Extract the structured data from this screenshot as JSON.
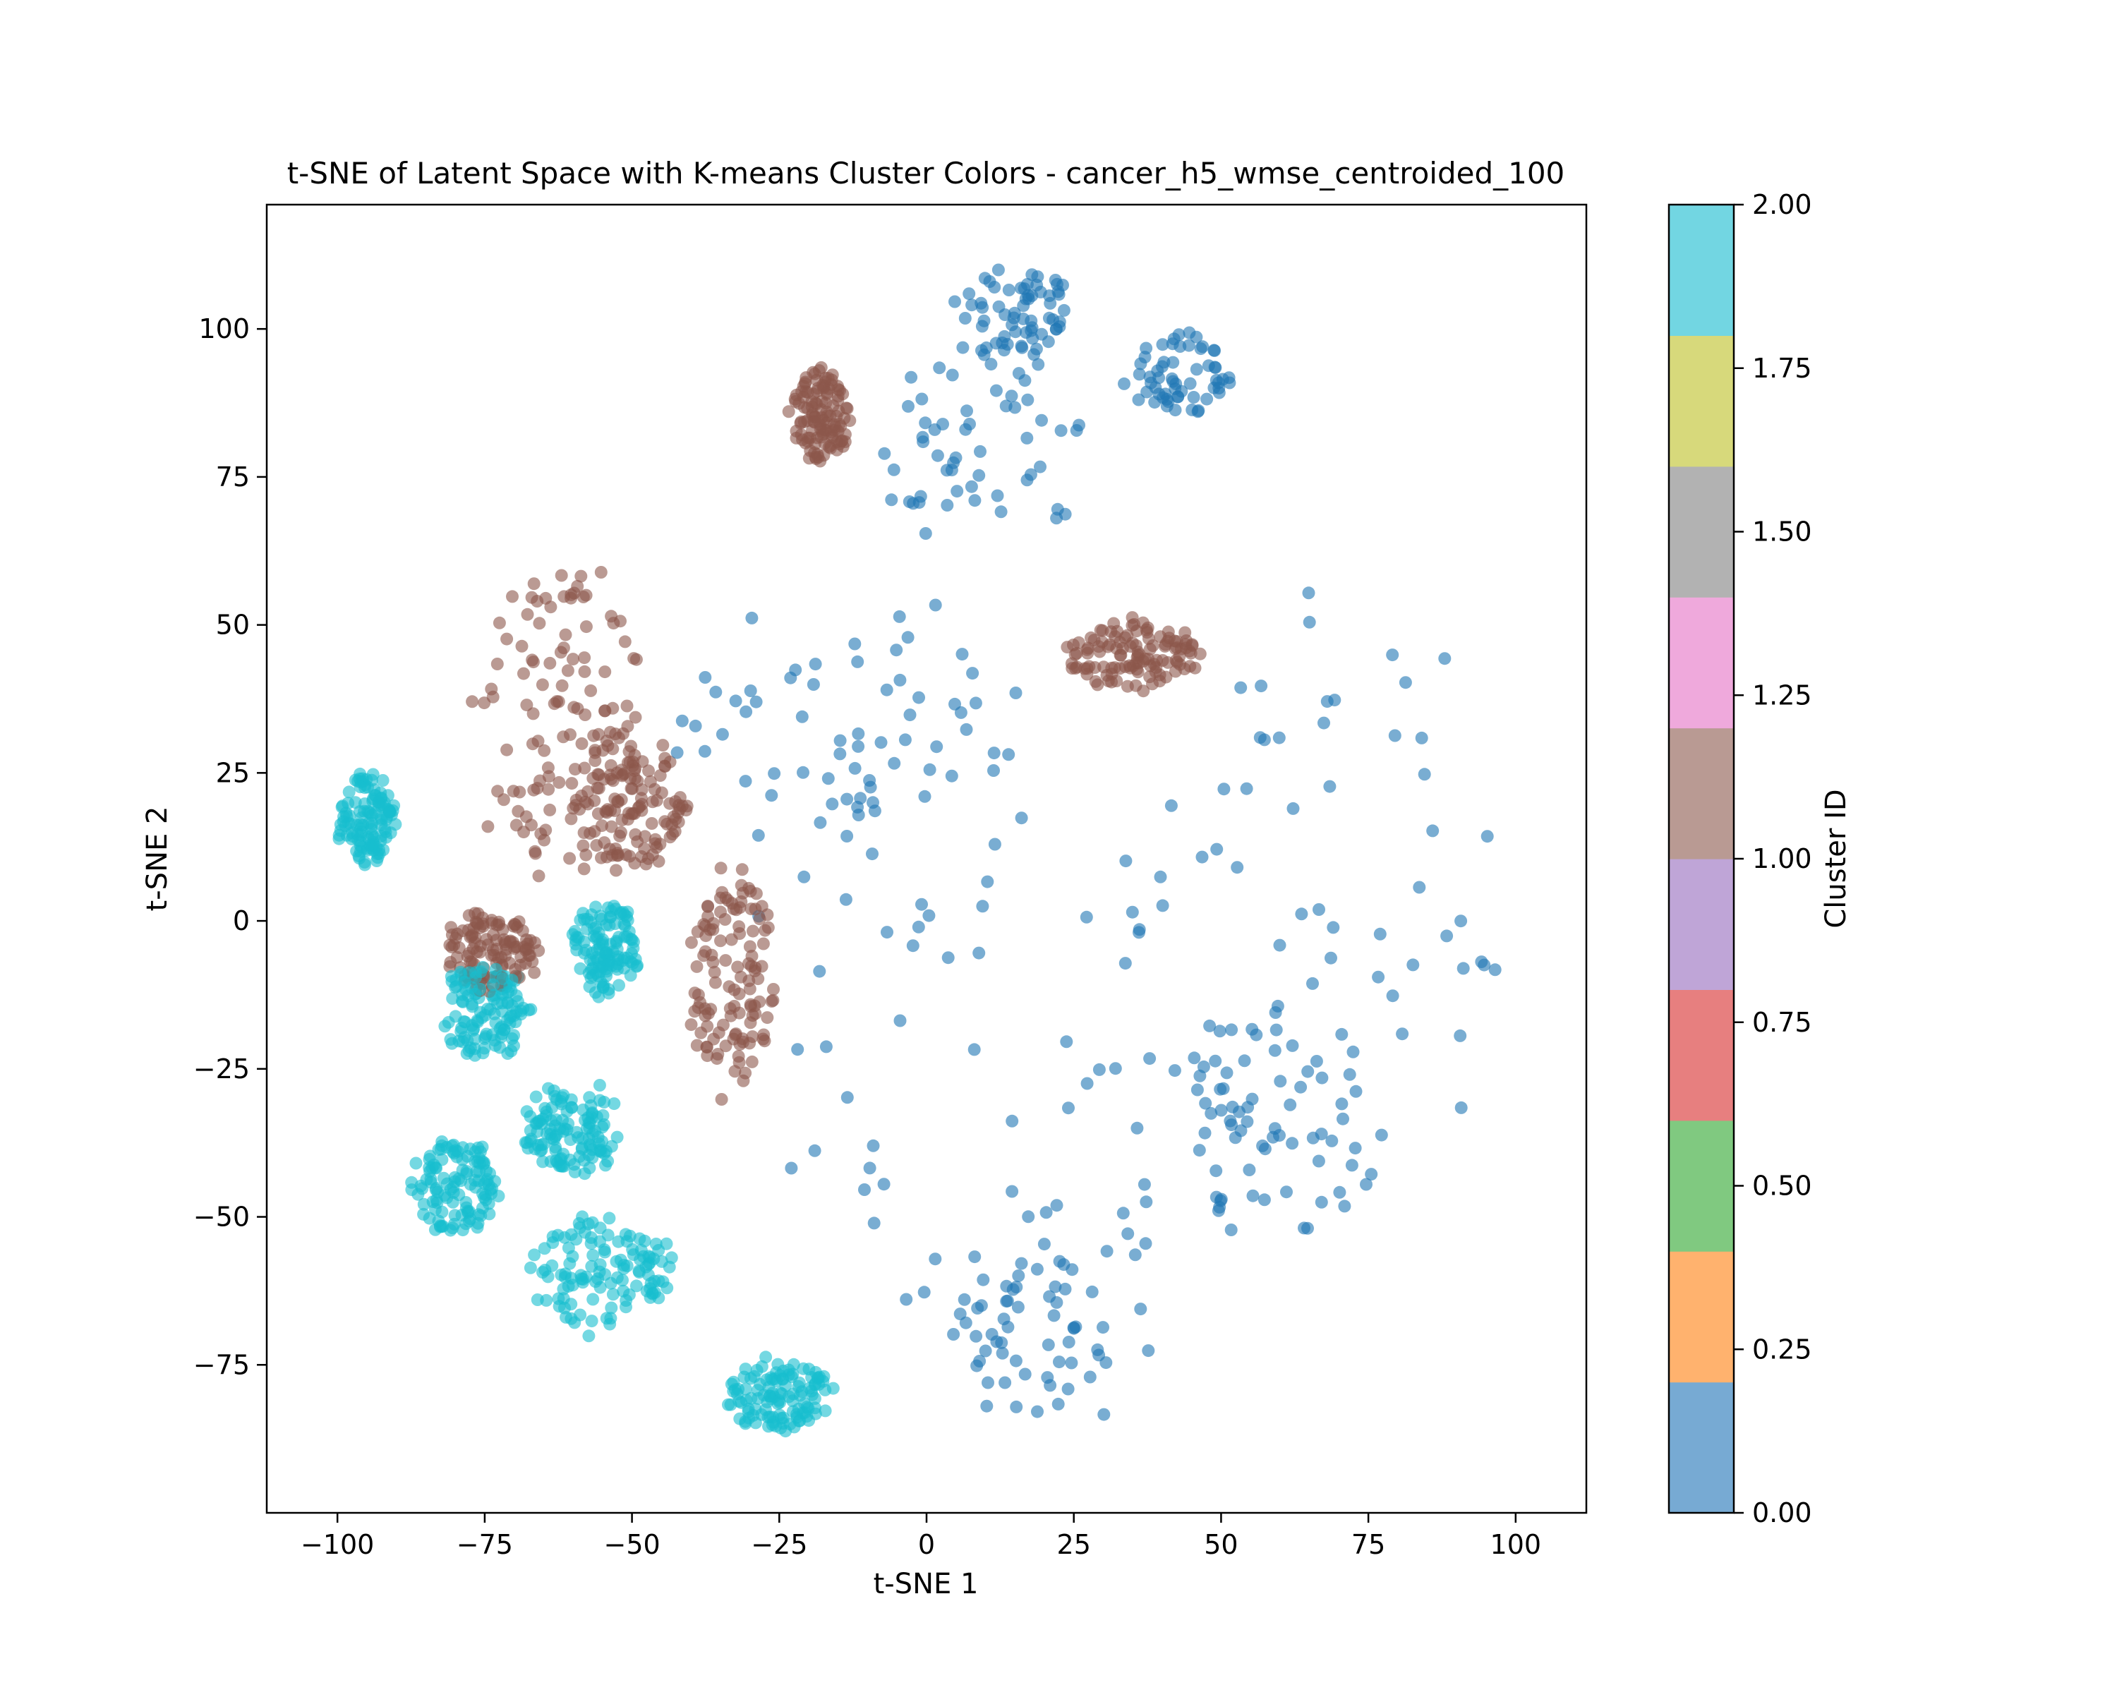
{
  "chart_data": {
    "type": "scatter",
    "title": "t-SNE of Latent Space with K-means Cluster Colors - cancer_h5_wmse_centroided_100",
    "xlabel": "t-SNE 1",
    "ylabel": "t-SNE 2",
    "xlim": [
      -112,
      112
    ],
    "ylim": [
      -100,
      121
    ],
    "xticks": [
      -100,
      -75,
      -50,
      -25,
      0,
      25,
      50,
      75,
      100
    ],
    "xtick_labels": [
      "−100",
      "−75",
      "−50",
      "−25",
      "0",
      "25",
      "50",
      "75",
      "100"
    ],
    "yticks": [
      -75,
      -50,
      -25,
      0,
      25,
      50,
      75,
      100
    ],
    "ytick_labels": [
      "−75",
      "−50",
      "−25",
      "0",
      "25",
      "50",
      "75",
      "100"
    ],
    "grid": false,
    "series": [
      {
        "cluster_id": 0,
        "color": "#1f77b4",
        "regions": [
          {
            "center": [
              10,
              -20
            ],
            "radius": [
              42,
              48
            ]
          },
          {
            "center": [
              70,
              5
            ],
            "radius": [
              28,
              50
            ]
          },
          {
            "center": [
              60,
              -35
            ],
            "radius": [
              18,
              20
            ]
          },
          {
            "center": [
              -15,
              35
            ],
            "radius": [
              30,
              22
            ]
          },
          {
            "center": [
              10,
              80
            ],
            "radius": [
              18,
              18
            ]
          },
          {
            "center": [
              15,
              103
            ],
            "radius": [
              10,
              8
            ]
          },
          {
            "center": [
              43,
              92
            ],
            "radius": [
              9,
              7
            ]
          },
          {
            "center": [
              20,
              -70
            ],
            "radius": [
              18,
              15
            ]
          }
        ]
      },
      {
        "cluster_id": 1,
        "color": "#8c564b",
        "regions": [
          {
            "center": [
              -62,
              35
            ],
            "radius": [
              15,
              28
            ]
          },
          {
            "center": [
              -50,
              20
            ],
            "radius": [
              10,
              12
            ]
          },
          {
            "center": [
              -74,
              -5
            ],
            "radius": [
              8,
              7
            ]
          },
          {
            "center": [
              -18,
              85
            ],
            "radius": [
              5,
              8
            ]
          },
          {
            "center": [
              35,
              45
            ],
            "radius": [
              12,
              6
            ]
          },
          {
            "center": [
              -33,
              -10
            ],
            "radius": [
              7,
              20
            ]
          }
        ]
      },
      {
        "cluster_id": 2,
        "color": "#17becf",
        "regions": [
          {
            "center": [
              -95,
              17
            ],
            "radius": [
              5,
              8
            ]
          },
          {
            "center": [
              -80,
              -45
            ],
            "radius": [
              8,
              8
            ]
          },
          {
            "center": [
              -75,
              -15
            ],
            "radius": [
              8,
              8
            ]
          },
          {
            "center": [
              -55,
              -60
            ],
            "radius": [
              12,
              10
            ]
          },
          {
            "center": [
              -60,
              -35
            ],
            "radius": [
              8,
              8
            ]
          },
          {
            "center": [
              -25,
              -80
            ],
            "radius": [
              9,
              6
            ]
          },
          {
            "center": [
              -55,
              -5
            ],
            "radius": [
              6,
              8
            ]
          }
        ]
      }
    ],
    "colorbar": {
      "label": "Cluster ID",
      "range": [
        0,
        2
      ],
      "tick_labels": [
        "0.00",
        "0.25",
        "0.50",
        "0.75",
        "1.00",
        "1.25",
        "1.50",
        "1.75",
        "2.00"
      ],
      "colors": [
        "#77aad3",
        "#ffb26e",
        "#80c980",
        "#e77f7f",
        "#bfa5d7",
        "#b99a93",
        "#efa9dc",
        "#b2b2b2",
        "#d7d97b",
        "#72d6e2"
      ]
    }
  }
}
